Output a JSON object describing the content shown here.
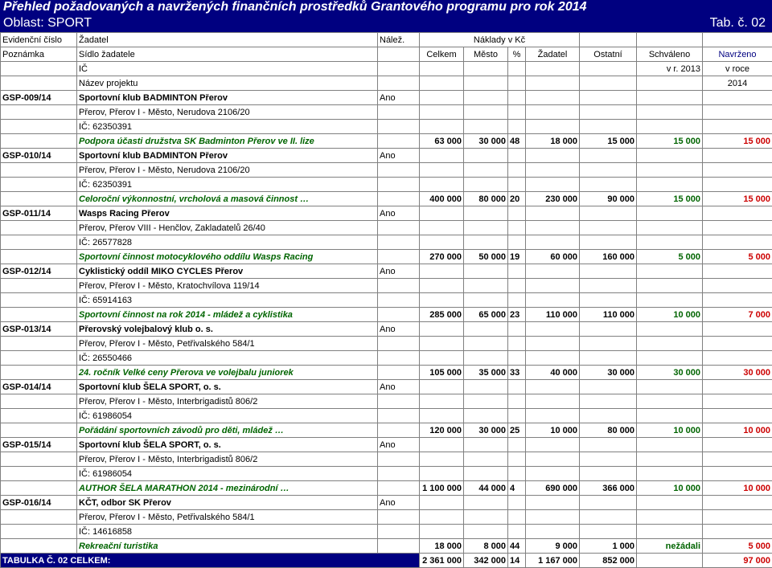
{
  "title": {
    "line1": "Přehled požadovaných a navržených finančních prostředků Grantového programu pro rok 2014",
    "line2": "Oblast: SPORT",
    "tab": "Tab. č. 02"
  },
  "headers": {
    "row1": {
      "evid": "Evidenční číslo",
      "zadatel": "Žadatel",
      "nalez": "Nálež.",
      "naklady": "Náklady v Kč"
    },
    "row2": {
      "poznamka": "Poznámka",
      "sidlo": "Sídlo žadatele",
      "celkem": "Celkem",
      "mesto": "Město",
      "pct": "%",
      "zadatel": "Žadatel",
      "ostatni": "Ostatní",
      "schvaleno": "Schváleno",
      "navrzeno": "Navrženo"
    },
    "row3": {
      "ic": "IČ",
      "schvaleno": "v r. 2013",
      "navrzeno": "v roce"
    },
    "row4": {
      "nazev": "Název projektu",
      "navrzeno": "2014"
    }
  },
  "entries": [
    {
      "id": "GSP-009/14",
      "name": "Sportovní klub BADMINTON Přerov",
      "nalez": "Ano",
      "address": "Přerov, Přerov I - Město, Nerudova 2106/20",
      "ic": "IČ: 62350391",
      "project": "Podpora účasti družstva SK Badminton Přerov ve II. lize",
      "celkem": "63 000",
      "mesto": "30 000",
      "pct": "48",
      "zadatel": "18 000",
      "ostatni": "15 000",
      "schvaleno": "15 000",
      "navrzeno": "15 000"
    },
    {
      "id": "GSP-010/14",
      "name": "Sportovní klub BADMINTON Přerov",
      "nalez": "Ano",
      "address": "Přerov, Přerov I - Město, Nerudova 2106/20",
      "ic": "IČ: 62350391",
      "project": "Celoroční výkonnostní, vrcholová a masová činnost …",
      "celkem": "400 000",
      "mesto": "80 000",
      "pct": "20",
      "zadatel": "230 000",
      "ostatni": "90 000",
      "schvaleno": "15 000",
      "navrzeno": "15 000"
    },
    {
      "id": "GSP-011/14",
      "name": "Wasps Racing Přerov",
      "nalez": "Ano",
      "address": "Přerov, Přerov VIII - Henčlov, Zakladatelů 26/40",
      "ic": "IČ: 26577828",
      "project": "Sportovní činnost motocyklového oddílu Wasps Racing",
      "celkem": "270 000",
      "mesto": "50 000",
      "pct": "19",
      "zadatel": "60 000",
      "ostatni": "160 000",
      "schvaleno": "5 000",
      "navrzeno": "5 000"
    },
    {
      "id": "GSP-012/14",
      "name": "Cyklistický oddíl MIKO CYCLES Přerov",
      "nalez": "Ano",
      "address": "Přerov, Přerov I - Město, Kratochvílova 119/14",
      "ic": "IČ: 65914163",
      "project": "Sportovní činnost na rok 2014 - mládež a cyklistika",
      "celkem": "285 000",
      "mesto": "65 000",
      "pct": "23",
      "zadatel": "110 000",
      "ostatni": "110 000",
      "schvaleno": "10 000",
      "navrzeno": "7 000"
    },
    {
      "id": "GSP-013/14",
      "name": "Přerovský volejbalový klub o. s.",
      "nalez": "Ano",
      "address": "Přerov, Přerov I - Město, Petřivalského 584/1",
      "ic": "IČ: 26550466",
      "project": "24. ročník Velké ceny Přerova ve volejbalu juniorek",
      "celkem": "105 000",
      "mesto": "35 000",
      "pct": "33",
      "zadatel": "40 000",
      "ostatni": "30 000",
      "schvaleno": "30 000",
      "navrzeno": "30 000"
    },
    {
      "id": "GSP-014/14",
      "name": "Sportovní klub ŠELA SPORT, o. s.",
      "nalez": "Ano",
      "address": "Přerov, Přerov I - Město, Interbrigadistů 806/2",
      "ic": "IČ: 61986054",
      "project": "Pořádání sportovních závodů pro děti, mládež …",
      "celkem": "120 000",
      "mesto": "30 000",
      "pct": "25",
      "zadatel": "10 000",
      "ostatni": "80 000",
      "schvaleno": "10 000",
      "navrzeno": "10 000"
    },
    {
      "id": "GSP-015/14",
      "name": "Sportovní klub ŠELA SPORT, o. s.",
      "nalez": "Ano",
      "address": "Přerov, Přerov I - Město, Interbrigadistů 806/2",
      "ic": "IČ: 61986054",
      "project": "AUTHOR ŠELA MARATHON 2014 - mezinárodní …",
      "celkem": "1 100 000",
      "mesto": "44 000",
      "pct": "4",
      "zadatel": "690 000",
      "ostatni": "366 000",
      "schvaleno": "10 000",
      "navrzeno": "10 000"
    },
    {
      "id": "GSP-016/14",
      "name": "KČT, odbor SK Přerov",
      "nalez": "Ano",
      "address": "Přerov, Přerov I - Město, Petřivalského  584/1",
      "ic": "IČ: 14616858",
      "project": "Rekreační turistika",
      "celkem": "18 000",
      "mesto": "8 000",
      "pct": "44",
      "zadatel": "9 000",
      "ostatni": "1 000",
      "schvaleno": "nežádali",
      "navrzeno": "5 000"
    }
  ],
  "total": {
    "label": "TABULKA Č. 02 CELKEM:",
    "celkem": "2 361 000",
    "mesto": "342 000",
    "pct": "14",
    "zadatel": "1 167 000",
    "ostatni": "852 000",
    "navrzeno": "97 000"
  }
}
